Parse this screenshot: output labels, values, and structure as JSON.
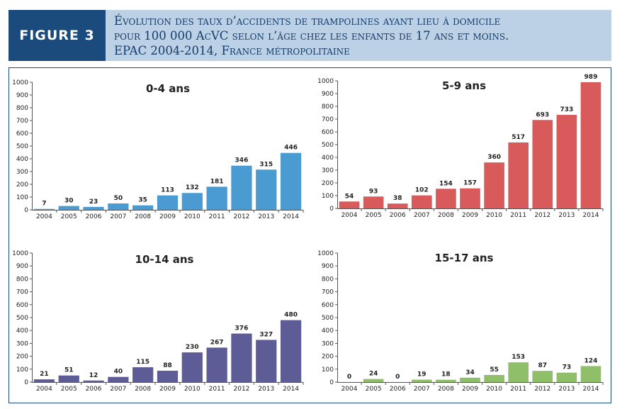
{
  "figure": {
    "label": "FIGURE 3"
  },
  "title": {
    "line1": "Évolution des taux d’accidents de trampolines ayant lieu à domicile",
    "line2": "pour 100 000 AcVC selon l’âge chez les enfants de 17 ans et moins.",
    "line3": "EPAC 2004-2014, France métropolitaine"
  },
  "chart_data": [
    {
      "type": "bar",
      "title": "0-4 ans",
      "color": "#4a9bd1",
      "categories": [
        "2004",
        "2005",
        "2006",
        "2007",
        "2008",
        "2009",
        "2010",
        "2011",
        "2012",
        "2013",
        "2014"
      ],
      "values": [
        7,
        30,
        23,
        50,
        35,
        113,
        132,
        181,
        346,
        315,
        446
      ],
      "ylim": [
        0,
        1000
      ],
      "yticks": [
        0,
        100,
        200,
        300,
        400,
        500,
        600,
        700,
        800,
        900,
        1000
      ]
    },
    {
      "type": "bar",
      "title": "5-9 ans",
      "color": "#d85a5a",
      "categories": [
        "2004",
        "2005",
        "2006",
        "2007",
        "2008",
        "2009",
        "2010",
        "2011",
        "2012",
        "2013",
        "2014"
      ],
      "values": [
        54,
        93,
        38,
        102,
        154,
        157,
        360,
        517,
        693,
        733,
        989
      ],
      "ylim": [
        0,
        1000
      ],
      "yticks": [
        0,
        100,
        200,
        300,
        400,
        500,
        600,
        700,
        800,
        900,
        1000
      ]
    },
    {
      "type": "bar",
      "title": "10-14 ans",
      "color": "#5e5c96",
      "categories": [
        "2004",
        "2005",
        "2006",
        "2007",
        "2008",
        "2009",
        "2010",
        "2011",
        "2012",
        "2013",
        "2014"
      ],
      "values": [
        21,
        51,
        12,
        40,
        115,
        88,
        230,
        267,
        376,
        327,
        480
      ],
      "ylim": [
        0,
        1000
      ],
      "yticks": [
        0,
        100,
        200,
        300,
        400,
        500,
        600,
        700,
        800,
        900,
        1000
      ]
    },
    {
      "type": "bar",
      "title": "15-17 ans",
      "color": "#8fc069",
      "categories": [
        "2004",
        "2005",
        "2006",
        "2007",
        "2008",
        "2009",
        "2010",
        "2011",
        "2012",
        "2013",
        "2014"
      ],
      "values": [
        0,
        24,
        0,
        19,
        18,
        34,
        55,
        153,
        87,
        73,
        124
      ],
      "ylim": [
        0,
        1000
      ],
      "yticks": [
        0,
        100,
        200,
        300,
        400,
        500,
        600,
        700,
        800,
        900,
        1000
      ]
    }
  ]
}
